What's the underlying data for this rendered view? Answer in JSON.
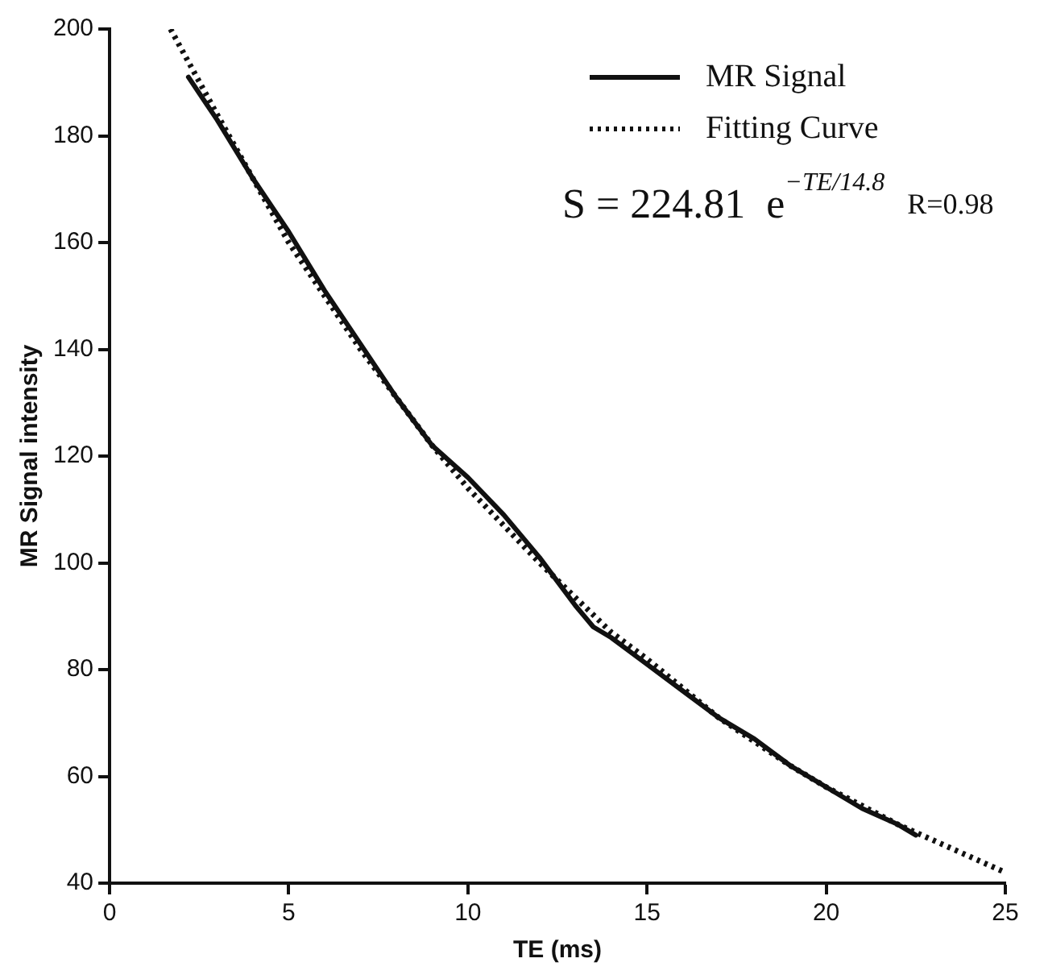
{
  "chart_data": {
    "type": "line",
    "xlabel": "TE (ms)",
    "ylabel": "MR Signal intensity",
    "xlim": [
      0,
      25
    ],
    "xticks": [
      0,
      5,
      10,
      15,
      20,
      25
    ],
    "ylim": [
      40,
      200
    ],
    "yticks": [
      40,
      60,
      80,
      100,
      120,
      140,
      160,
      180,
      200
    ],
    "grid": false,
    "legend": "top right",
    "marker": "none",
    "series": [
      {
        "name": "MR Signal",
        "color": "#111111",
        "line_style": "solid",
        "x": [
          2.2,
          3,
          4,
          5,
          6,
          7,
          8,
          9,
          10,
          11,
          12,
          13,
          13.5,
          14,
          15,
          16,
          17,
          18,
          19,
          20,
          21,
          22,
          22.5
        ],
        "values": [
          191,
          183,
          172,
          162,
          151,
          141,
          131,
          122,
          116,
          109,
          101,
          92,
          88,
          86,
          81,
          76,
          71,
          67,
          62,
          58,
          54,
          51,
          49
        ]
      },
      {
        "name": "Fitting Curve",
        "color": "#111111",
        "line_style": "dotted",
        "x": [
          1.7,
          3,
          5,
          7,
          9,
          10,
          12,
          14,
          15,
          17,
          19,
          20,
          22,
          24,
          25
        ],
        "values": [
          200,
          184,
          160,
          140,
          122,
          114,
          100,
          87,
          82,
          71,
          62,
          58,
          51,
          45,
          42
        ]
      }
    ],
    "annotations": [
      "S = 224.81  e$^{−TE/14.8}$",
      "R=0.98"
    ]
  }
}
